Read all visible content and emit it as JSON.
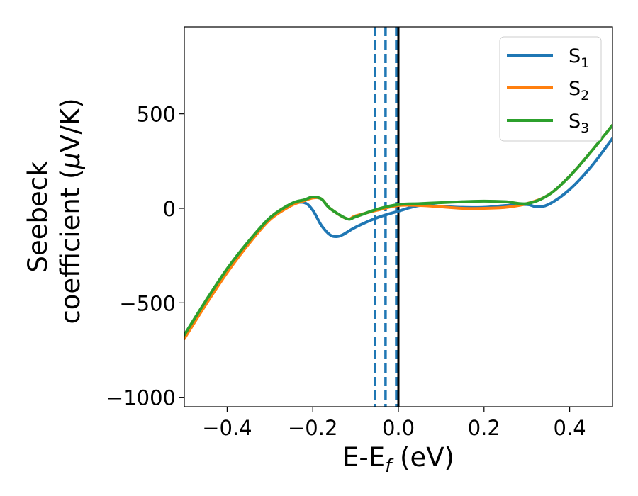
{
  "chart_data": {
    "type": "line",
    "title": "",
    "xlabel": "E-E",
    "xlabel_sub": "f",
    "xlabel_unit": " (eV)",
    "ylabel_line1": "Seebeck",
    "ylabel_line2": "coefficient  (",
    "ylabel_mu": "μ",
    "ylabel_unit": "V/K)",
    "xlim": [
      -0.5,
      0.5
    ],
    "ylim": [
      -1050,
      960
    ],
    "xticks": [
      -0.4,
      -0.2,
      0.0,
      0.2,
      0.4
    ],
    "xtick_labels": [
      "−0.4",
      "−0.2",
      "0.0",
      "0.2",
      "0.4"
    ],
    "yticks": [
      -1000,
      -500,
      0,
      500
    ],
    "ytick_labels": [
      "−1000",
      "−500",
      "0",
      "500"
    ],
    "grid": false,
    "legend_position": "top-right",
    "series": [
      {
        "name": "S",
        "name_sub": "1",
        "color": "#1f77b4",
        "x": [
          -0.5,
          -0.45,
          -0.4,
          -0.35,
          -0.3,
          -0.25,
          -0.22,
          -0.2,
          -0.18,
          -0.16,
          -0.145,
          -0.13,
          -0.1,
          -0.05,
          0.0,
          0.05,
          0.1,
          0.15,
          0.2,
          0.25,
          0.3,
          0.32,
          0.35,
          0.4,
          0.45,
          0.5
        ],
        "y": [
          -680,
          -500,
          -330,
          -180,
          -50,
          20,
          30,
          -10,
          -90,
          -140,
          -150,
          -140,
          -100,
          -50,
          -15,
          15,
          10,
          5,
          5,
          15,
          20,
          10,
          20,
          100,
          220,
          370
        ]
      },
      {
        "name": "S",
        "name_sub": "2",
        "color": "#ff7f0e",
        "x": [
          -0.5,
          -0.45,
          -0.4,
          -0.35,
          -0.3,
          -0.25,
          -0.22,
          -0.2,
          -0.18,
          -0.16,
          -0.12,
          -0.1,
          -0.05,
          0.0,
          0.05,
          0.1,
          0.15,
          0.2,
          0.25,
          0.3,
          0.35,
          0.4,
          0.45,
          0.5
        ],
        "y": [
          -690,
          -510,
          -340,
          -190,
          -60,
          15,
          40,
          55,
          50,
          0,
          -55,
          -40,
          -10,
          15,
          15,
          8,
          0,
          0,
          5,
          25,
          70,
          170,
          300,
          440
        ]
      },
      {
        "name": "S",
        "name_sub": "3",
        "color": "#2ca02c",
        "x": [
          -0.5,
          -0.45,
          -0.4,
          -0.35,
          -0.3,
          -0.25,
          -0.22,
          -0.2,
          -0.18,
          -0.16,
          -0.12,
          -0.1,
          -0.05,
          0.0,
          0.05,
          0.1,
          0.15,
          0.2,
          0.25,
          0.3,
          0.35,
          0.4,
          0.45,
          0.5
        ],
        "y": [
          -670,
          -490,
          -320,
          -175,
          -50,
          25,
          45,
          60,
          50,
          0,
          -55,
          -45,
          -5,
          20,
          25,
          30,
          35,
          38,
          35,
          25,
          70,
          170,
          300,
          440
        ]
      }
    ],
    "vertical_lines": [
      {
        "x": -0.055,
        "style": "dashed",
        "color": "#1f77b4"
      },
      {
        "x": -0.03,
        "style": "dashed",
        "color": "#1f77b4"
      },
      {
        "x": -0.005,
        "style": "dashed",
        "color": "#1f77b4"
      },
      {
        "x": 0.0,
        "style": "solid",
        "color": "#000000"
      }
    ]
  }
}
